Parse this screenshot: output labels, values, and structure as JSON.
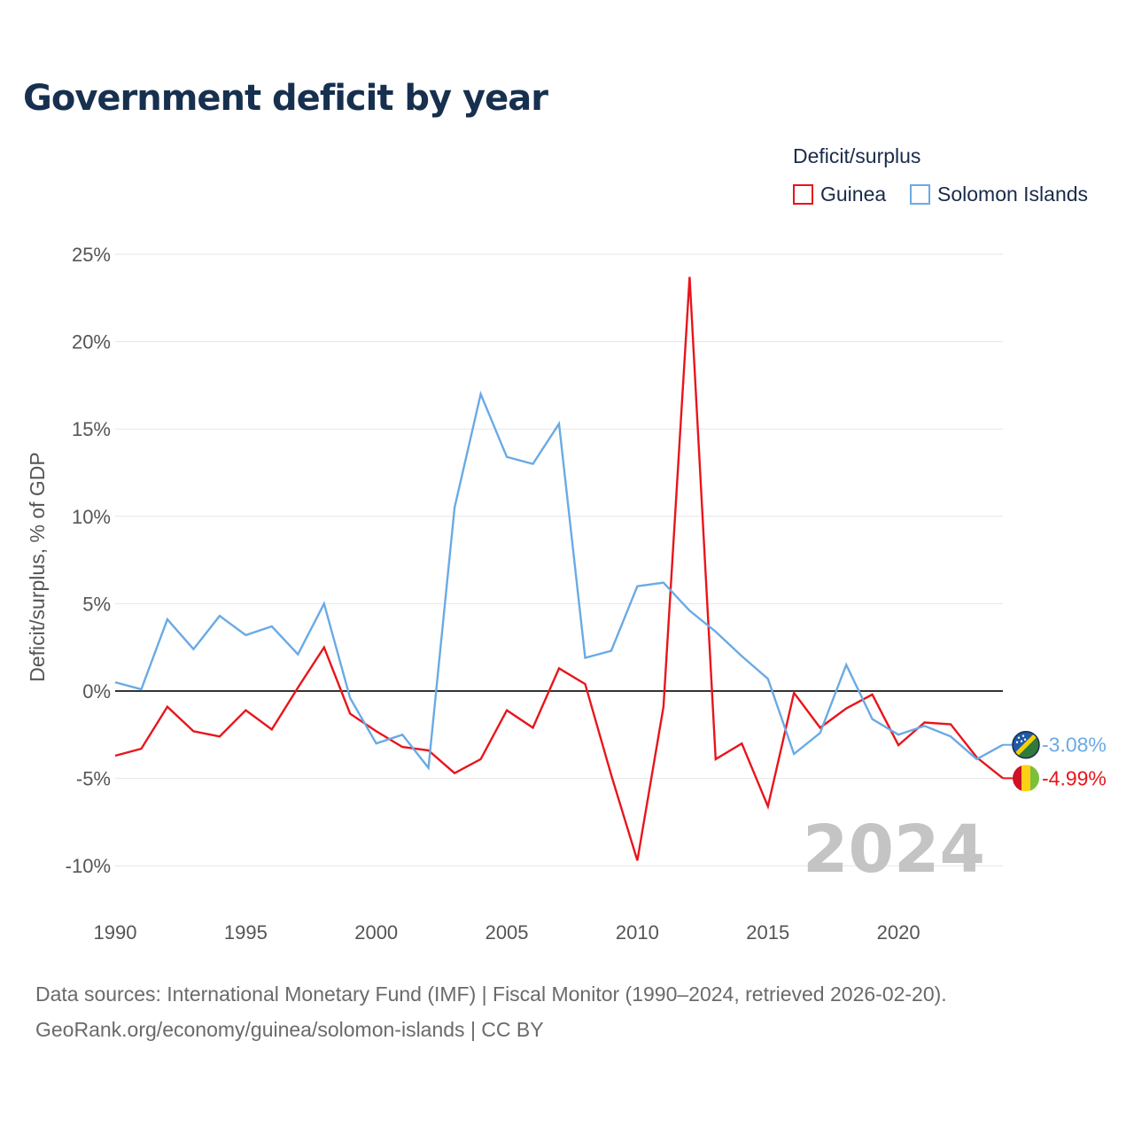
{
  "title": "Government deficit by year",
  "legend": {
    "title": "Deficit/surplus",
    "items": [
      {
        "label": "Guinea",
        "color": "#e8151b"
      },
      {
        "label": "Solomon Islands",
        "color": "#6aaae4"
      }
    ]
  },
  "footer": {
    "source": "Data sources: International Monetary Fund (IMF) | Fiscal Monitor (1990–2024, retrieved 2026-02-20).",
    "link": "GeoRank.org/economy/guinea/solomon-islands | CC BY"
  },
  "chart_data": {
    "type": "line",
    "ylabel": "Deficit/surplus, % of GDP",
    "xlabel": "",
    "xlim": [
      1990,
      2024
    ],
    "ylim": [
      -12,
      26
    ],
    "x_ticks": [
      1990,
      1995,
      2000,
      2005,
      2010,
      2015,
      2020
    ],
    "y_ticks": [
      -10,
      -5,
      0,
      5,
      10,
      15,
      20,
      25
    ],
    "y_tick_labels": [
      "-10%",
      "-5%",
      "0%",
      "5%",
      "10%",
      "15%",
      "20%",
      "25%"
    ],
    "current_year": "2024",
    "x": [
      1990,
      1991,
      1992,
      1993,
      1994,
      1995,
      1996,
      1997,
      1998,
      1999,
      2000,
      2001,
      2002,
      2003,
      2004,
      2005,
      2006,
      2007,
      2008,
      2009,
      2010,
      2011,
      2012,
      2013,
      2014,
      2015,
      2016,
      2017,
      2018,
      2019,
      2020,
      2021,
      2022,
      2023,
      2024
    ],
    "series": [
      {
        "name": "Guinea",
        "color": "#e8151b",
        "end_label": "-4.99%",
        "values": [
          -3.7,
          -3.3,
          -0.9,
          -2.3,
          -2.6,
          -1.1,
          -2.2,
          0.2,
          2.5,
          -1.3,
          -2.3,
          -3.2,
          -3.4,
          -4.7,
          -3.9,
          -1.1,
          -2.1,
          1.3,
          0.4,
          -4.8,
          -9.7,
          -0.9,
          23.7,
          -3.9,
          -3.0,
          -6.6,
          -0.1,
          -2.1,
          -1.0,
          -0.2,
          -3.1,
          -1.8,
          -1.9,
          -3.8,
          -4.99
        ]
      },
      {
        "name": "Solomon Islands",
        "color": "#6aaae4",
        "end_label": "-3.08%",
        "values": [
          0.5,
          0.1,
          4.1,
          2.4,
          4.3,
          3.2,
          3.7,
          2.1,
          5.0,
          -0.4,
          -3.0,
          -2.5,
          -4.4,
          10.5,
          17.0,
          13.4,
          13.0,
          15.3,
          1.9,
          2.3,
          6.0,
          6.2,
          4.6,
          3.4,
          2.0,
          0.7,
          -3.6,
          -2.4,
          1.5,
          -1.6,
          -2.5,
          -2.0,
          -2.6,
          -3.9,
          -3.08
        ]
      }
    ]
  }
}
